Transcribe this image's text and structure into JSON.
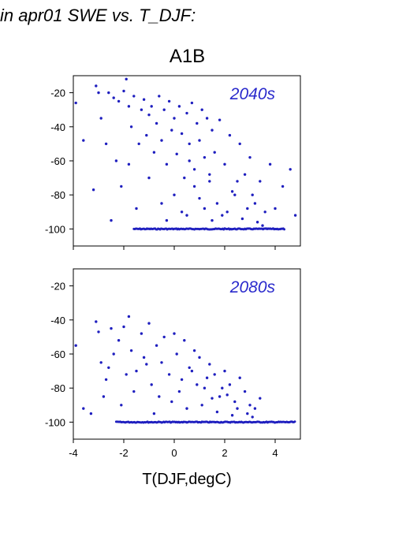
{
  "header": {
    "title": "in apr01 SWE vs. T_DJF:",
    "scenario": "A1B"
  },
  "colors": {
    "points": "#1f1fbf",
    "panel_label": "#2a2acc",
    "frame": "#000000"
  },
  "chart_data": [
    {
      "type": "scatter",
      "panel_label": "2040s",
      "xlabel": "",
      "ylabel": "",
      "xlim": [
        -4,
        5
      ],
      "ylim": [
        -110,
        -10
      ],
      "yticks": [
        -20,
        -40,
        -60,
        -80,
        -100
      ],
      "xticks": [
        -4,
        -2,
        0,
        2,
        4
      ],
      "x_ticklabels_shown": false,
      "floor_value": -100,
      "floor_x_range": [
        -1.6,
        4.4
      ],
      "series": [
        {
          "points": [
            [
              -3.9,
              -26
            ],
            [
              -3.6,
              -48
            ],
            [
              -3.1,
              -16
            ],
            [
              -3.0,
              -20
            ],
            [
              -2.9,
              -35
            ],
            [
              -2.6,
              -20
            ],
            [
              -2.4,
              -23
            ],
            [
              -2.3,
              -60
            ],
            [
              -2.2,
              -25
            ],
            [
              -2.0,
              -19
            ],
            [
              -1.9,
              -12
            ],
            [
              -1.8,
              -28
            ],
            [
              -1.7,
              -40
            ],
            [
              -1.6,
              -22
            ],
            [
              -1.4,
              -50
            ],
            [
              -1.3,
              -30
            ],
            [
              -1.2,
              -24
            ],
            [
              -1.1,
              -45
            ],
            [
              -1.0,
              -33
            ],
            [
              -0.9,
              -28
            ],
            [
              -0.8,
              -55
            ],
            [
              -0.7,
              -38
            ],
            [
              -0.6,
              -22
            ],
            [
              -0.5,
              -48
            ],
            [
              -0.4,
              -30
            ],
            [
              -0.3,
              -62
            ],
            [
              -0.2,
              -25
            ],
            [
              -0.1,
              -42
            ],
            [
              0.0,
              -35
            ],
            [
              0.1,
              -56
            ],
            [
              0.2,
              -28
            ],
            [
              0.3,
              -44
            ],
            [
              0.4,
              -70
            ],
            [
              0.5,
              -32
            ],
            [
              0.6,
              -50
            ],
            [
              0.7,
              -26
            ],
            [
              0.8,
              -65
            ],
            [
              0.9,
              -38
            ],
            [
              1.0,
              -48
            ],
            [
              1.1,
              -30
            ],
            [
              1.2,
              -58
            ],
            [
              1.3,
              -35
            ],
            [
              1.4,
              -72
            ],
            [
              1.5,
              -42
            ],
            [
              1.6,
              -55
            ],
            [
              1.8,
              -36
            ],
            [
              2.0,
              -62
            ],
            [
              2.2,
              -45
            ],
            [
              2.4,
              -80
            ],
            [
              2.6,
              -50
            ],
            [
              2.8,
              -68
            ],
            [
              3.0,
              -58
            ],
            [
              3.2,
              -85
            ],
            [
              3.4,
              -72
            ],
            [
              3.6,
              -90
            ],
            [
              3.8,
              -62
            ],
            [
              4.0,
              -88
            ],
            [
              4.3,
              -75
            ],
            [
              4.6,
              -65
            ],
            [
              4.8,
              -92
            ],
            [
              -3.2,
              -77
            ],
            [
              -2.5,
              -95
            ],
            [
              -1.5,
              -88
            ],
            [
              -0.5,
              -85
            ],
            [
              0.5,
              -92
            ],
            [
              1.0,
              -82
            ],
            [
              1.5,
              -95
            ],
            [
              2.1,
              -90
            ],
            [
              2.7,
              -94
            ],
            [
              3.3,
              -96
            ],
            [
              -2.7,
              -50
            ],
            [
              -1.0,
              -70
            ],
            [
              0.0,
              -80
            ],
            [
              0.8,
              -75
            ],
            [
              1.7,
              -85
            ],
            [
              2.3,
              -78
            ],
            [
              -0.3,
              -95
            ],
            [
              0.3,
              -90
            ],
            [
              1.2,
              -88
            ],
            [
              1.9,
              -92
            ],
            [
              2.9,
              -88
            ],
            [
              3.5,
              -98
            ],
            [
              -1.8,
              -62
            ],
            [
              -2.1,
              -75
            ],
            [
              0.6,
              -60
            ],
            [
              1.4,
              -68
            ],
            [
              2.5,
              -72
            ],
            [
              3.1,
              -80
            ]
          ]
        }
      ]
    },
    {
      "type": "scatter",
      "panel_label": "2080s",
      "xlabel": "T(DJF,degC)",
      "ylabel": "",
      "xlim": [
        -4,
        5
      ],
      "ylim": [
        -110,
        -10
      ],
      "yticks": [
        -20,
        -40,
        -60,
        -80,
        -100
      ],
      "xticks": [
        -4,
        -2,
        0,
        2,
        4
      ],
      "x_ticklabels": [
        "-4",
        "-2",
        "0",
        "2",
        "4"
      ],
      "floor_value": -100,
      "floor_x_range": [
        -2.3,
        4.8
      ],
      "series": [
        {
          "points": [
            [
              -3.9,
              -55
            ],
            [
              -3.6,
              -92
            ],
            [
              -3.1,
              -41
            ],
            [
              -3.0,
              -47
            ],
            [
              -2.9,
              -65
            ],
            [
              -2.7,
              -75
            ],
            [
              -2.5,
              -45
            ],
            [
              -2.4,
              -60
            ],
            [
              -2.2,
              -52
            ],
            [
              -2.0,
              -44
            ],
            [
              -1.8,
              -38
            ],
            [
              -1.7,
              -58
            ],
            [
              -1.5,
              -70
            ],
            [
              -1.3,
              -48
            ],
            [
              -1.2,
              -62
            ],
            [
              -1.0,
              -42
            ],
            [
              -0.9,
              -78
            ],
            [
              -0.7,
              -55
            ],
            [
              -0.5,
              -65
            ],
            [
              -0.4,
              -50
            ],
            [
              -0.2,
              -72
            ],
            [
              0.0,
              -48
            ],
            [
              0.1,
              -60
            ],
            [
              0.3,
              -75
            ],
            [
              0.4,
              -52
            ],
            [
              0.6,
              -68
            ],
            [
              0.8,
              -58
            ],
            [
              1.0,
              -62
            ],
            [
              1.2,
              -80
            ],
            [
              1.4,
              -66
            ],
            [
              1.6,
              -72
            ],
            [
              1.8,
              -85
            ],
            [
              2.0,
              -70
            ],
            [
              2.2,
              -78
            ],
            [
              2.4,
              -88
            ],
            [
              2.6,
              -74
            ],
            [
              2.8,
              -82
            ],
            [
              3.0,
              -90
            ],
            [
              3.2,
              -92
            ],
            [
              3.4,
              -86
            ],
            [
              -3.3,
              -95
            ],
            [
              -2.8,
              -85
            ],
            [
              -2.1,
              -90
            ],
            [
              -1.6,
              -82
            ],
            [
              -0.8,
              -95
            ],
            [
              -0.1,
              -88
            ],
            [
              0.5,
              -92
            ],
            [
              1.1,
              -90
            ],
            [
              1.7,
              -94
            ],
            [
              2.3,
              -96
            ],
            [
              2.9,
              -95
            ],
            [
              -1.9,
              -72
            ],
            [
              -0.6,
              -85
            ],
            [
              0.2,
              -82
            ],
            [
              0.9,
              -78
            ],
            [
              1.5,
              -86
            ],
            [
              2.1,
              -84
            ],
            [
              -2.6,
              -68
            ],
            [
              -1.1,
              -66
            ],
            [
              0.7,
              -70
            ],
            [
              1.3,
              -74
            ],
            [
              1.9,
              -80
            ],
            [
              2.5,
              -92
            ],
            [
              3.1,
              -97
            ]
          ]
        }
      ]
    }
  ]
}
